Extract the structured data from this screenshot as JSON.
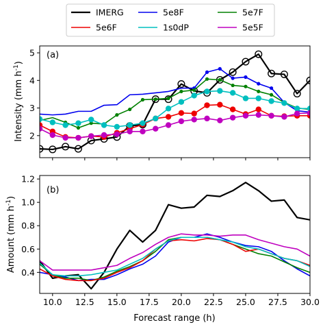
{
  "legend": {
    "columns": 3,
    "placement": "top-center"
  },
  "xaxis": {
    "label": "Forecast range (h)",
    "range": [
      9,
      30
    ],
    "ticks": [
      10,
      12.5,
      15,
      17.5,
      20,
      22.5,
      25,
      27.5,
      30
    ],
    "tick_labels": [
      "10.0",
      "12.5",
      "15.0",
      "17.5",
      "20.0",
      "22.5",
      "25.0",
      "27.5",
      "30.0"
    ]
  },
  "chart_data": [
    {
      "type": "line",
      "panel_label": "(a)",
      "ylabel": "Intensity (mm h",
      "ylabel_sup": "-1",
      "ylabel_close": ")",
      "ylim": [
        1.2,
        5.25
      ],
      "yticks": [
        2,
        3,
        4,
        5
      ],
      "ytick_labels": [
        "2",
        "3",
        "4",
        "5"
      ],
      "x": [
        9,
        10,
        11,
        12,
        13,
        14,
        15,
        16,
        17,
        18,
        19,
        20,
        21,
        22,
        23,
        24,
        25,
        26,
        27,
        28,
        29,
        30
      ],
      "series": [
        {
          "name": "IMERG",
          "color": "#000000",
          "marker": "open-circle",
          "markers_at": [
            0,
            1,
            2,
            3,
            4,
            5,
            6,
            7,
            8,
            9,
            10,
            11,
            12,
            13,
            14,
            15,
            16,
            17,
            18,
            19,
            20,
            21
          ],
          "values": [
            1.52,
            1.5,
            1.6,
            1.52,
            1.82,
            1.88,
            1.95,
            2.35,
            2.4,
            3.32,
            3.32,
            3.87,
            3.62,
            3.55,
            4.02,
            4.3,
            4.68,
            4.95,
            4.25,
            4.22,
            3.52,
            4.0
          ]
        },
        {
          "name": "5e8F",
          "color": "#0000ee",
          "marker": "small-dot",
          "markers_at": [
            12,
            13,
            14,
            15,
            16,
            17,
            18,
            19,
            20,
            21
          ],
          "values": [
            2.78,
            2.75,
            2.78,
            2.88,
            2.88,
            3.1,
            3.12,
            3.48,
            3.5,
            3.55,
            3.6,
            3.72,
            3.72,
            4.3,
            4.42,
            4.08,
            4.12,
            3.88,
            3.72,
            3.2,
            2.9,
            2.85
          ]
        },
        {
          "name": "5e7F",
          "color": "#008000",
          "marker": "small-dot",
          "markers_at": [
            0,
            2,
            3,
            4,
            5,
            6,
            7,
            8,
            9,
            10,
            11,
            12,
            13,
            14,
            15,
            16,
            17,
            18,
            19,
            20,
            21
          ],
          "values": [
            2.55,
            2.65,
            2.48,
            2.28,
            2.45,
            2.42,
            2.75,
            2.95,
            3.3,
            3.32,
            3.35,
            3.6,
            3.65,
            4.05,
            4.02,
            3.82,
            3.78,
            3.6,
            3.48,
            3.2,
            3.0,
            2.95
          ]
        },
        {
          "name": "5e6F",
          "color": "#ee0000",
          "marker": "filled-circle",
          "markers_at": [
            0,
            1,
            2,
            3,
            4,
            5,
            6,
            7,
            8,
            9,
            10,
            11,
            12,
            13,
            14,
            15,
            16,
            17,
            18,
            19,
            20,
            21
          ],
          "values": [
            2.38,
            2.15,
            1.95,
            1.92,
            1.98,
            1.95,
            2.1,
            2.25,
            2.4,
            2.62,
            2.68,
            2.82,
            2.8,
            3.1,
            3.12,
            2.95,
            2.78,
            2.95,
            2.72,
            2.7,
            2.72,
            2.72
          ]
        },
        {
          "name": "1s0dP",
          "color": "#00bfbf",
          "marker": "filled-circle",
          "markers_at": [
            0,
            1,
            2,
            3,
            4,
            5,
            6,
            7,
            8,
            9,
            10,
            11,
            12,
            13,
            14,
            15,
            16,
            17,
            18,
            19,
            20,
            21
          ],
          "values": [
            2.6,
            2.48,
            2.38,
            2.45,
            2.58,
            2.38,
            2.32,
            2.38,
            2.45,
            2.62,
            2.98,
            3.22,
            3.45,
            3.6,
            3.62,
            3.55,
            3.35,
            3.35,
            3.25,
            3.18,
            2.98,
            2.98
          ]
        },
        {
          "name": "5e5F",
          "color": "#bf00bf",
          "marker": "filled-circle",
          "markers_at": [
            0,
            1,
            2,
            3,
            4,
            5,
            6,
            7,
            8,
            9,
            10,
            11,
            12,
            13,
            14,
            15,
            16,
            17,
            18,
            19,
            20,
            21
          ],
          "values": [
            2.25,
            2.02,
            1.92,
            1.92,
            1.98,
            2.02,
            2.05,
            2.15,
            2.15,
            2.25,
            2.38,
            2.52,
            2.58,
            2.62,
            2.55,
            2.65,
            2.72,
            2.75,
            2.72,
            2.68,
            2.8,
            2.82
          ]
        }
      ]
    },
    {
      "type": "line",
      "panel_label": "(b)",
      "ylabel": "Amount (mm h",
      "ylabel_sup": "-1",
      "ylabel_close": ")",
      "ylim": [
        0.22,
        1.23
      ],
      "yticks": [
        0.4,
        0.6,
        0.8,
        1.0,
        1.2
      ],
      "ytick_labels": [
        "0.4",
        "0.6",
        "0.8",
        "1.0",
        "1.2"
      ],
      "x": [
        9,
        10,
        11,
        12,
        13,
        14,
        15,
        16,
        17,
        18,
        19,
        20,
        21,
        22,
        23,
        24,
        25,
        26,
        27,
        28,
        29,
        30
      ],
      "series": [
        {
          "name": "IMERG",
          "color": "#000000",
          "values": [
            0.5,
            0.35,
            0.37,
            0.38,
            0.26,
            0.4,
            0.6,
            0.76,
            0.66,
            0.76,
            0.98,
            0.95,
            0.96,
            1.06,
            1.05,
            1.1,
            1.17,
            1.1,
            1.01,
            1.02,
            0.87,
            0.85
          ]
        },
        {
          "name": "5e8F",
          "color": "#0000ee",
          "values": [
            0.4,
            0.38,
            0.36,
            0.33,
            0.34,
            0.34,
            0.38,
            0.43,
            0.47,
            0.54,
            0.66,
            0.7,
            0.7,
            0.73,
            0.7,
            0.66,
            0.63,
            0.62,
            0.58,
            0.5,
            0.43,
            0.37
          ]
        },
        {
          "name": "5e7F",
          "color": "#008000",
          "values": [
            0.47,
            0.38,
            0.35,
            0.35,
            0.33,
            0.36,
            0.41,
            0.45,
            0.5,
            0.58,
            0.68,
            0.7,
            0.7,
            0.7,
            0.68,
            0.64,
            0.6,
            0.56,
            0.54,
            0.49,
            0.44,
            0.4
          ]
        },
        {
          "name": "5e6F",
          "color": "#ee0000",
          "values": [
            0.43,
            0.37,
            0.34,
            0.33,
            0.33,
            0.35,
            0.4,
            0.44,
            0.5,
            0.6,
            0.67,
            0.68,
            0.67,
            0.69,
            0.68,
            0.64,
            0.58,
            0.6,
            0.56,
            0.52,
            0.5,
            0.46
          ]
        },
        {
          "name": "1s0dP",
          "color": "#00bfbf",
          "values": [
            0.48,
            0.38,
            0.37,
            0.37,
            0.38,
            0.4,
            0.42,
            0.47,
            0.52,
            0.6,
            0.67,
            0.7,
            0.7,
            0.7,
            0.68,
            0.66,
            0.62,
            0.6,
            0.56,
            0.52,
            0.5,
            0.45
          ]
        },
        {
          "name": "5e5F",
          "color": "#bf00bf",
          "values": [
            0.5,
            0.42,
            0.42,
            0.42,
            0.42,
            0.44,
            0.46,
            0.52,
            0.57,
            0.64,
            0.7,
            0.73,
            0.72,
            0.72,
            0.71,
            0.72,
            0.72,
            0.68,
            0.65,
            0.62,
            0.6,
            0.54
          ]
        }
      ]
    }
  ]
}
